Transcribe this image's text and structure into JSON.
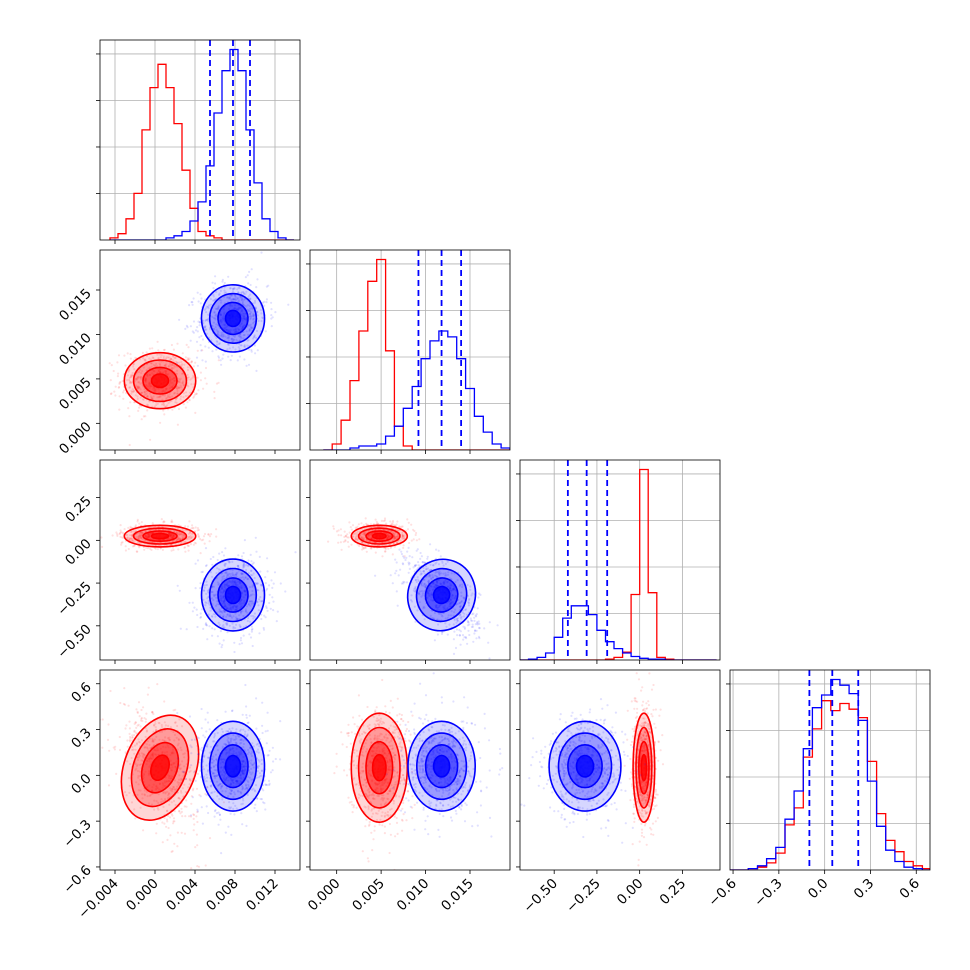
{
  "colors": {
    "red": "#ff0000",
    "blue": "#0000ff",
    "grid": "#b0b0b0"
  },
  "chart_data": {
    "type": "corner",
    "title": "",
    "grid": true,
    "parameters": [
      {
        "range": [
          -0.0055,
          0.0145
        ],
        "ticks": [
          -0.004,
          0.0,
          0.004,
          0.008,
          0.012
        ],
        "tick_labels": [
          "−0.004",
          "0.000",
          "0.004",
          "0.008",
          "0.012"
        ]
      },
      {
        "range": [
          -0.003,
          0.0195
        ],
        "ticks": [
          0.0,
          0.005,
          0.01,
          0.015
        ],
        "tick_labels": [
          "0.000",
          "0.005",
          "0.010",
          "0.015"
        ]
      },
      {
        "range": [
          -0.7,
          0.47
        ],
        "ticks": [
          -0.5,
          -0.25,
          0.0,
          0.25
        ],
        "tick_labels": [
          "−0.50",
          "−0.25",
          "0.00",
          "0.25"
        ]
      },
      {
        "range": [
          -0.62,
          0.69
        ],
        "ticks": [
          -0.6,
          -0.3,
          0.0,
          0.3,
          0.6
        ],
        "tick_labels": [
          "−0.6",
          "−0.3",
          "0.0",
          "0.3",
          "0.6"
        ]
      }
    ],
    "quantiles_blue": [
      [
        0.0055,
        0.0078,
        0.0095
      ],
      [
        0.0092,
        0.0118,
        0.014
      ],
      [
        -0.42,
        -0.31,
        -0.19
      ],
      [
        -0.1,
        0.05,
        0.22
      ]
    ],
    "histograms": [
      {
        "bin_edges": [
          -0.0045,
          -0.0037,
          -0.0029,
          -0.0021,
          -0.0013,
          -0.0005,
          0.0003,
          0.0011,
          0.0019,
          0.0027,
          0.0035,
          0.0043,
          0.0051,
          0.0059,
          0.0067,
          0.0075,
          0.0083,
          0.0091,
          0.0099,
          0.0107,
          0.0115,
          0.0123,
          0.0131,
          0.0139
        ],
        "red": [
          1,
          3,
          10,
          22,
          52,
          72,
          83,
          72,
          55,
          33,
          15,
          4,
          2,
          1,
          0,
          0,
          0,
          0,
          0,
          0,
          0,
          0,
          0
        ],
        "blue": [
          0,
          0,
          0,
          0,
          0,
          0,
          0,
          1,
          2,
          4,
          9,
          18,
          35,
          60,
          80,
          90,
          80,
          52,
          27,
          10,
          4,
          1,
          0
        ]
      },
      {
        "bin_edges": [
          -0.0015,
          -0.0005,
          0.0005,
          0.0015,
          0.0025,
          0.0035,
          0.0045,
          0.0055,
          0.0065,
          0.0075,
          0.0085,
          0.0095,
          0.0105,
          0.0115,
          0.0125,
          0.0135,
          0.0145,
          0.0155,
          0.0165,
          0.0175,
          0.0185,
          0.0195
        ],
        "red": [
          0,
          3,
          15,
          35,
          60,
          85,
          96,
          50,
          12,
          2,
          0,
          0,
          0,
          0,
          0,
          0,
          0,
          0,
          0,
          0,
          0
        ],
        "blue": [
          0,
          0,
          0,
          1,
          2,
          2,
          3,
          7,
          12,
          21,
          32,
          46,
          55,
          60,
          57,
          46,
          31,
          17,
          9,
          3,
          1
        ]
      },
      {
        "bin_edges": [
          -0.7,
          -0.65,
          -0.6,
          -0.55,
          -0.5,
          -0.45,
          -0.4,
          -0.35,
          -0.3,
          -0.25,
          -0.2,
          -0.15,
          -0.1,
          -0.05,
          0.0,
          0.05,
          0.1,
          0.15,
          0.2,
          0.25,
          0.3,
          0.35,
          0.4,
          0.45
        ],
        "red": [
          0,
          0,
          0,
          0,
          0,
          0,
          0,
          0,
          0,
          0,
          1,
          3,
          9,
          75,
          218,
          77,
          3,
          1,
          0,
          0,
          0,
          0,
          0
        ],
        "blue": [
          0,
          1,
          3,
          8,
          26,
          48,
          62,
          62,
          52,
          34,
          21,
          13,
          8,
          4,
          2,
          1,
          1,
          0,
          0,
          0,
          0,
          0,
          0
        ]
      },
      {
        "bin_edges": [
          -0.62,
          -0.56,
          -0.5,
          -0.44,
          -0.38,
          -0.32,
          -0.26,
          -0.2,
          -0.14,
          -0.08,
          -0.02,
          0.04,
          0.1,
          0.16,
          0.22,
          0.28,
          0.34,
          0.4,
          0.46,
          0.52,
          0.58,
          0.64,
          0.69
        ],
        "red": [
          0,
          0,
          1,
          2,
          5,
          12,
          32,
          44,
          80,
          100,
          120,
          113,
          118,
          114,
          108,
          77,
          40,
          21,
          13,
          6,
          3,
          1
        ],
        "blue": [
          0,
          0,
          1,
          3,
          8,
          16,
          36,
          56,
          86,
          115,
          124,
          135,
          131,
          125,
          106,
          63,
          31,
          14,
          6,
          2,
          1,
          0
        ]
      }
    ],
    "clusters": {
      "red": [
        {
          "mean": 0.0005,
          "sd": 0.0017
        },
        {
          "mean": 0.0048,
          "sd": 0.0015
        },
        {
          "mean": 0.025,
          "sd": 0.03
        },
        {
          "mean": 0.05,
          "sd": 0.17
        }
      ],
      "blue": [
        {
          "mean": 0.0078,
          "sd": 0.0015
        },
        {
          "mean": 0.0118,
          "sd": 0.0018
        },
        {
          "mean": -0.32,
          "sd": 0.1
        },
        {
          "mean": 0.06,
          "sd": 0.14
        }
      ],
      "correlation": {
        "red": {
          "1-0": 0.0,
          "2-0": 0.0,
          "2-1": 0.0,
          "3-0": -0.45,
          "3-1": 0.0,
          "3-2": 0.0
        },
        "blue": {
          "1-0": 0.1,
          "2-0": 0.0,
          "2-1": -0.6,
          "3-0": 0.0,
          "3-1": 0.0,
          "3-2": 0.0
        }
      }
    }
  }
}
